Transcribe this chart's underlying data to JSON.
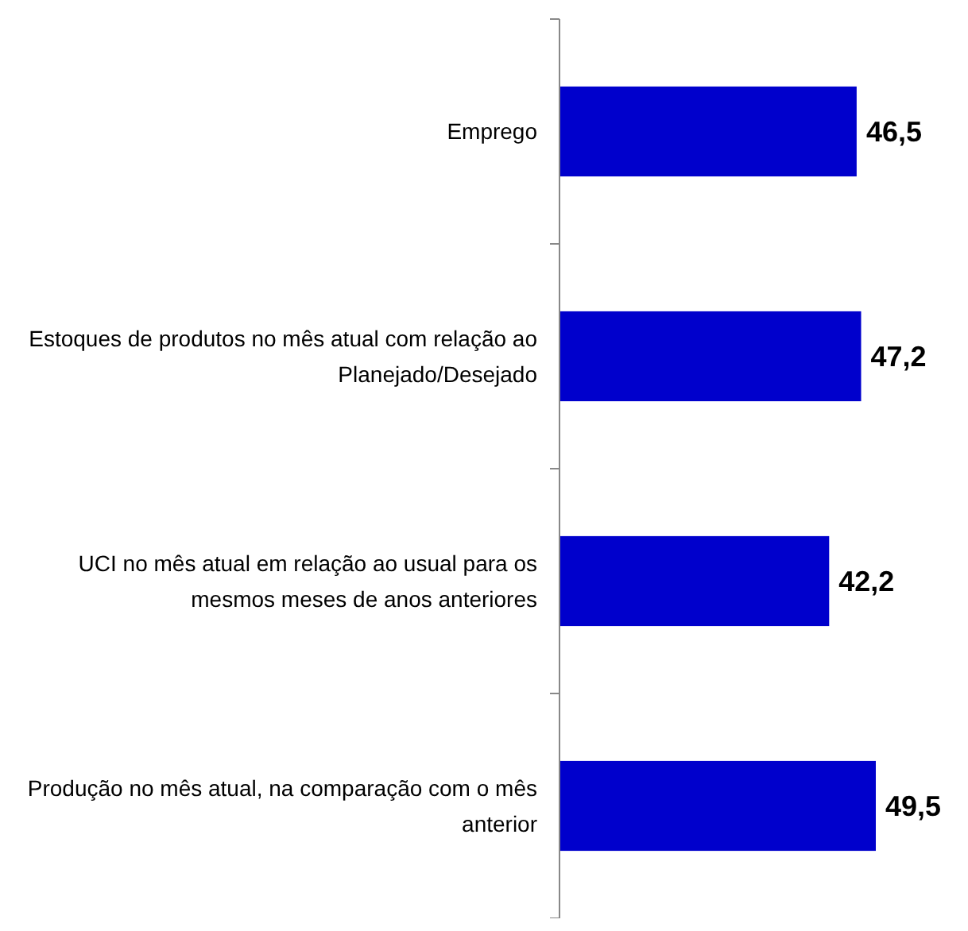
{
  "chart_data": {
    "type": "bar",
    "orientation": "horizontal",
    "categories": [
      "Emprego",
      "Estoques de produtos no mês atual com relação ao Planejado/Desejado",
      "UCI no mês atual em relação ao usual para os mesmos meses de anos anteriores",
      "Produção no mês atual, na comparação com o mês anterior"
    ],
    "values": [
      46.5,
      47.2,
      42.2,
      49.5
    ],
    "value_labels": [
      "46,5",
      "47,2",
      "42,2",
      "49,5"
    ],
    "color": "#0000cc"
  }
}
